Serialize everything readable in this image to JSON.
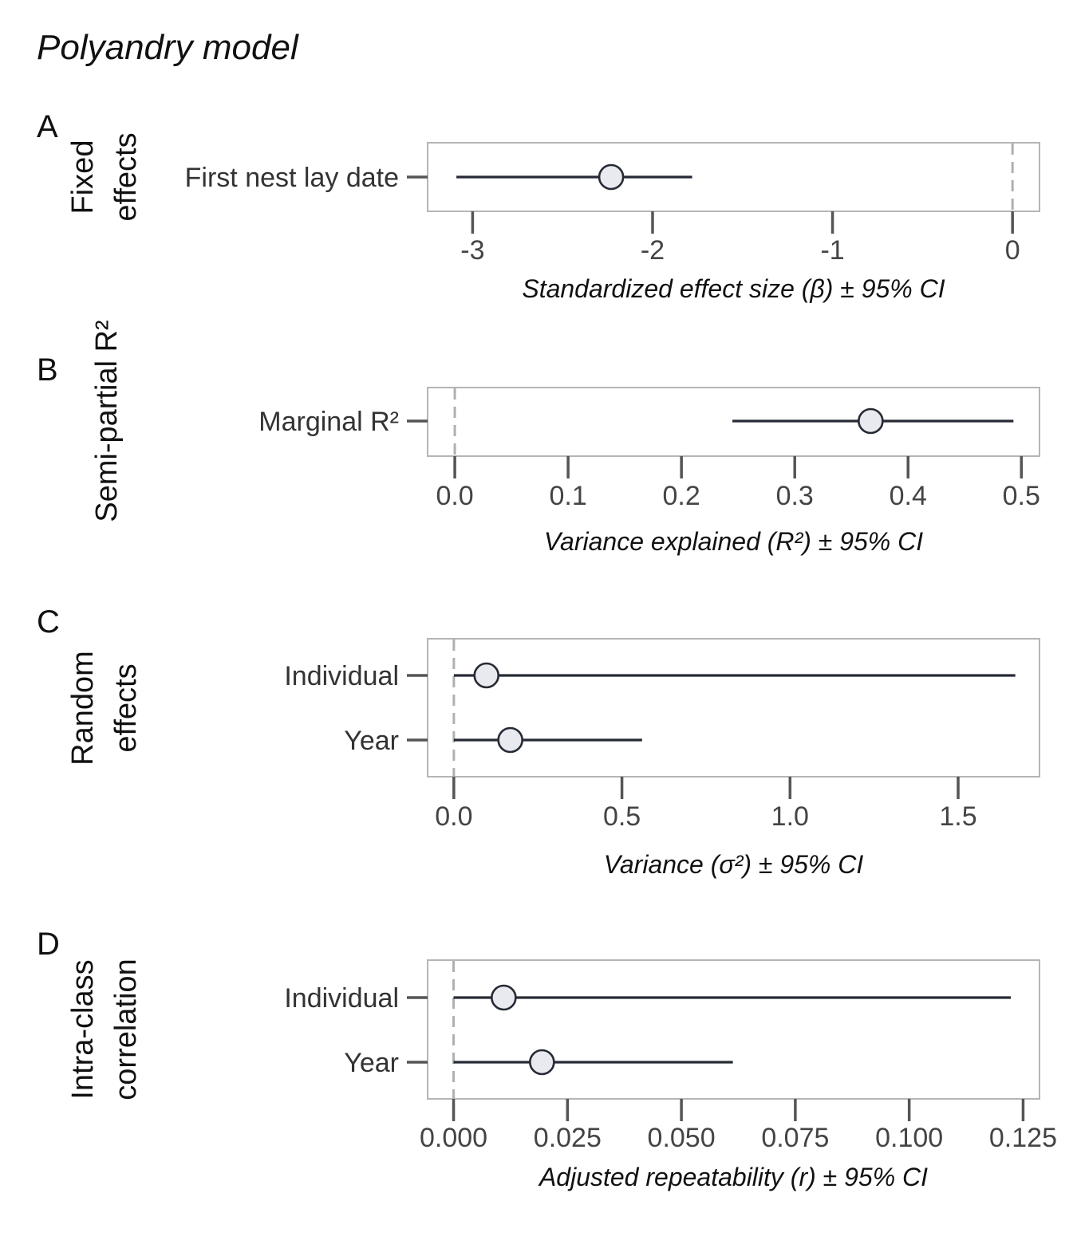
{
  "title": "Polyandry model",
  "chart_data": [
    {
      "type": "forest",
      "panel": "A",
      "strip_lines": [
        "Fixed",
        "effects"
      ],
      "xlabel": "Standardized effect size (β) ± 95% CI",
      "xlim": [
        -3.25,
        0.15
      ],
      "ref_x": 0,
      "ticks": [
        -3,
        -2,
        -1,
        0
      ],
      "tick_labels": [
        "-3",
        "-2",
        "-1",
        "0"
      ],
      "rows": [
        {
          "label": "First nest lay date",
          "estimate": -2.23,
          "lower": -3.09,
          "upper": -1.78
        }
      ]
    },
    {
      "type": "forest",
      "panel": "B",
      "strip_lines": [
        "Semi-partial R²"
      ],
      "xlabel": "Variance explained (R²) ± 95% CI",
      "xlim": [
        -0.024,
        0.516
      ],
      "ref_x": 0,
      "ticks": [
        0,
        0.1,
        0.2,
        0.3,
        0.4,
        0.5
      ],
      "tick_labels": [
        "0.0",
        "0.1",
        "0.2",
        "0.3",
        "0.4",
        "0.5"
      ],
      "rows": [
        {
          "label": "Marginal R²",
          "estimate": 0.367,
          "lower": 0.245,
          "upper": 0.493
        }
      ]
    },
    {
      "type": "forest",
      "panel": "C",
      "strip_lines": [
        "Random",
        "effects"
      ],
      "xlabel": "Variance (σ²) ± 95% CI",
      "xlim": [
        -0.078,
        1.742
      ],
      "ref_x": 0,
      "ticks": [
        0,
        0.5,
        1.0,
        1.5
      ],
      "tick_labels": [
        "0.0",
        "0.5",
        "1.0",
        "1.5"
      ],
      "rows": [
        {
          "label": "Individual",
          "estimate": 0.097,
          "lower": 0.0,
          "upper": 1.67
        },
        {
          "label": "Year",
          "estimate": 0.168,
          "lower": 0.0,
          "upper": 0.56
        }
      ]
    },
    {
      "type": "forest",
      "panel": "D",
      "strip_lines": [
        "Intra-class",
        "correlation"
      ],
      "xlabel": "Adjusted repeatability (r) ± 95% CI",
      "xlim": [
        -0.0057,
        0.1286
      ],
      "ref_x": 0,
      "ticks": [
        0,
        0.025,
        0.05,
        0.075,
        0.1,
        0.125
      ],
      "tick_labels": [
        "0.000",
        "0.025",
        "0.050",
        "0.075",
        "0.100",
        "0.125"
      ],
      "rows": [
        {
          "label": "Individual",
          "estimate": 0.011,
          "lower": 0.0,
          "upper": 0.1223
        },
        {
          "label": "Year",
          "estimate": 0.0194,
          "lower": 0.0,
          "upper": 0.0613
        }
      ]
    }
  ]
}
